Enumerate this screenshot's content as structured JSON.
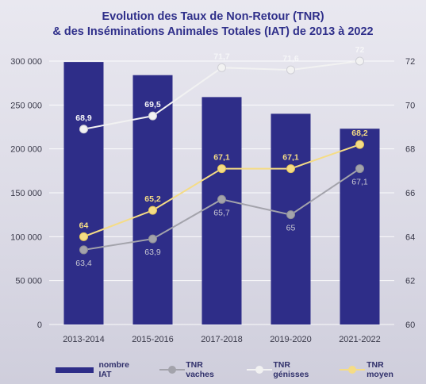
{
  "title_line1": "Evolution des Taux de Non-Retour (TNR)",
  "title_line2": "& des Inséminations Animales Totales (IAT) de 2013 à 2022",
  "colors": {
    "bar": "#2e2d88",
    "tnr_vaches": "#a3a3ab",
    "tnr_genisses": "#f2f2f2",
    "tnr_moyen": "#f5dc85",
    "axis_text": "#3a3a4a",
    "grid": "#ffffff"
  },
  "chart_data": {
    "type": "bar",
    "title": "Evolution des Taux de Non-Retour (TNR) & des Inséminations Animales Totales (IAT) de 2013 à 2022",
    "categories": [
      "2013-2014",
      "2015-2016",
      "2017-2018",
      "2019-2020",
      "2021-2022"
    ],
    "left_axis": {
      "range": [
        0,
        300000
      ],
      "ticks": [
        0,
        50000,
        100000,
        150000,
        200000,
        250000,
        300000
      ],
      "tick_labels": [
        "0",
        "50 000",
        "100 000",
        "150 000",
        "200 000",
        "250 000",
        "300 000"
      ]
    },
    "right_axis": {
      "range": [
        60,
        72
      ],
      "ticks": [
        60,
        62,
        64,
        66,
        68,
        70,
        72
      ],
      "tick_labels": [
        "60",
        "62",
        "64",
        "66",
        "68",
        "70",
        "72"
      ]
    },
    "grid": true,
    "legend_position": "bottom",
    "series": [
      {
        "name": "nombre IAT",
        "type": "bar",
        "axis": "left",
        "values": [
          299000,
          284000,
          259000,
          240000,
          223000
        ]
      },
      {
        "name": "TNR vaches",
        "type": "line",
        "axis": "right",
        "values": [
          63.4,
          63.9,
          65.7,
          65,
          67.1
        ],
        "labels": [
          "63,4",
          "63,9",
          "65,7",
          "65",
          "67,1"
        ]
      },
      {
        "name": "TNR génisses",
        "type": "line",
        "axis": "right",
        "values": [
          68.9,
          69.5,
          71.7,
          71.6,
          72
        ],
        "labels": [
          "68,9",
          "69,5",
          "71,7",
          "71,6",
          "72"
        ]
      },
      {
        "name": "TNR moyen",
        "type": "line",
        "axis": "right",
        "values": [
          64,
          65.2,
          67.1,
          67.1,
          68.2
        ],
        "labels": [
          "64",
          "65,2",
          "67,1",
          "67,1",
          "68,2"
        ]
      }
    ]
  },
  "legend": [
    {
      "label": "nombre IAT",
      "kind": "bar"
    },
    {
      "label": "TNR vaches",
      "kind": "line"
    },
    {
      "label": "TNR génisses",
      "kind": "line"
    },
    {
      "label": "TNR moyen",
      "kind": "line"
    }
  ]
}
